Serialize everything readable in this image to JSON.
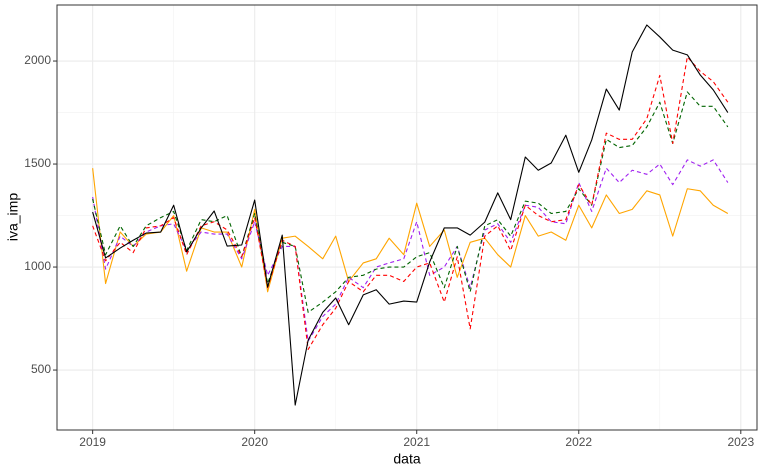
{
  "chart_data": {
    "type": "line",
    "xlabel": "data",
    "ylabel": "iva_imp",
    "x": [
      2019,
      2019.08,
      2019.17,
      2019.25,
      2019.33,
      2019.42,
      2019.5,
      2019.58,
      2019.67,
      2019.75,
      2019.83,
      2019.92,
      2020,
      2020.08,
      2020.17,
      2020.25,
      2020.33,
      2020.42,
      2020.5,
      2020.58,
      2020.67,
      2020.75,
      2020.83,
      2020.92,
      2021,
      2021.08,
      2021.17,
      2021.25,
      2021.33,
      2021.42,
      2021.5,
      2021.58,
      2021.67,
      2021.75,
      2021.83,
      2021.92,
      2022,
      2022.08,
      2022.17,
      2022.25,
      2022.33,
      2022.42,
      2022.5,
      2022.58,
      2022.67,
      2022.75,
      2022.83,
      2022.92
    ],
    "series": [
      {
        "color": "#ffa500",
        "linetype": "solid",
        "values": [
          1480,
          920,
          1170,
          1100,
          1160,
          1170,
          1250,
          980,
          1190,
          1170,
          1170,
          1000,
          1280,
          880,
          1140,
          1150,
          1100,
          1040,
          1150,
          930,
          1020,
          1040,
          1140,
          1060,
          1310,
          1100,
          1180,
          950,
          1120,
          1140,
          1060,
          1000,
          1250,
          1150,
          1170,
          1130,
          1300,
          1190,
          1350,
          1260,
          1280,
          1370,
          1350,
          1150,
          1380,
          1370,
          1300,
          1260
        ]
      },
      {
        "color": "#a020f0",
        "linetype": "dashed",
        "values": [
          1340,
          990,
          1150,
          1100,
          1170,
          1200,
          1210,
          1080,
          1170,
          1160,
          1160,
          1040,
          1220,
          960,
          1100,
          1100,
          640,
          760,
          820,
          950,
          900,
          1000,
          1020,
          1040,
          1220,
          960,
          1000,
          1100,
          900,
          1180,
          1210,
          1120,
          1300,
          1290,
          1220,
          1210,
          1410,
          1270,
          1480,
          1410,
          1470,
          1450,
          1500,
          1400,
          1520,
          1490,
          1520,
          1410
        ]
      },
      {
        "color": "#006400",
        "linetype": "dashed",
        "values": [
          1330,
          1060,
          1200,
          1100,
          1200,
          1240,
          1270,
          1080,
          1230,
          1220,
          1250,
          1050,
          1260,
          920,
          1120,
          1100,
          780,
          830,
          880,
          950,
          960,
          990,
          1000,
          1000,
          1050,
          1070,
          900,
          1100,
          880,
          1200,
          1230,
          1150,
          1320,
          1310,
          1260,
          1270,
          1380,
          1300,
          1620,
          1580,
          1590,
          1680,
          1800,
          1600,
          1850,
          1780,
          1780,
          1680
        ]
      },
      {
        "color": "#ff0000",
        "linetype": "dashed",
        "values": [
          1200,
          1030,
          1120,
          1070,
          1190,
          1200,
          1240,
          1060,
          1200,
          1220,
          1180,
          1050,
          1240,
          900,
          1130,
          1100,
          600,
          720,
          800,
          930,
          880,
          960,
          960,
          930,
          1000,
          1020,
          830,
          1050,
          700,
          1150,
          1200,
          1080,
          1300,
          1250,
          1220,
          1230,
          1400,
          1300,
          1650,
          1620,
          1620,
          1720,
          1930,
          1600,
          2020,
          1950,
          1900,
          1800
        ]
      },
      {
        "color": "#000000",
        "linetype": "solid",
        "values": [
          1267,
          1044,
          1092,
          1130,
          1165,
          1170,
          1300,
          1073,
          1190,
          1272,
          1102,
          1107,
          1325,
          903,
          1155,
          330,
          645,
          780,
          850,
          720,
          865,
          890,
          820,
          835,
          830,
          1025,
          1190,
          1190,
          1155,
          1218,
          1360,
          1230,
          1534,
          1470,
          1505,
          1640,
          1460,
          1617,
          1864,
          1762,
          2044,
          2175,
          2117,
          2053,
          2030,
          1932,
          1860,
          1750
        ]
      }
    ],
    "xlim": [
      2018.78,
      2023.1
    ],
    "xticks": [
      2019,
      2020,
      2021,
      2022,
      2023
    ],
    "ylim": [
      209,
      2272
    ],
    "yticks": [
      500,
      1000,
      1500,
      2000
    ],
    "grid": true
  }
}
